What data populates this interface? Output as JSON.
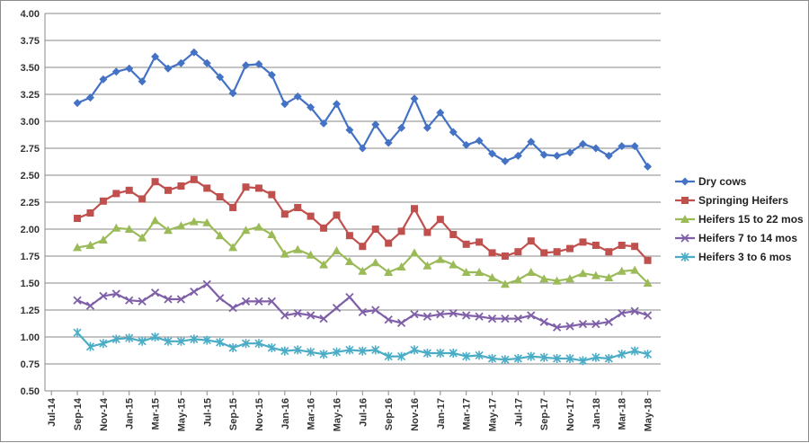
{
  "chart_data": {
    "type": "line",
    "ylim": [
      0.5,
      4.0
    ],
    "yticks": [
      "4.00",
      "3.75",
      "3.50",
      "3.25",
      "3.00",
      "2.75",
      "2.50",
      "2.25",
      "2.00",
      "1.75",
      "1.50",
      "1.25",
      "1.00",
      "0.75",
      "0.50"
    ],
    "xtick_labels": [
      "Jul-14",
      "Sep-14",
      "Nov-14",
      "Jan-15",
      "Mar-15",
      "May-15",
      "Jul-15",
      "Sep-15",
      "Nov-15",
      "Jan-16",
      "Mar-16",
      "May-16",
      "Jul-16",
      "Sep-16",
      "Nov-16",
      "Jan-17",
      "Mar-17",
      "May-17",
      "Jul-17",
      "Sep-17",
      "Nov-17",
      "Jan-18",
      "Mar-18",
      "May-18"
    ],
    "x": [
      "Sep-14",
      "Oct-14",
      "Nov-14",
      "Dec-14",
      "Jan-15",
      "Feb-15",
      "Mar-15",
      "Apr-15",
      "May-15",
      "Jun-15",
      "Jul-15",
      "Aug-15",
      "Sep-15",
      "Oct-15",
      "Nov-15",
      "Dec-15",
      "Jan-16",
      "Feb-16",
      "Mar-16",
      "Apr-16",
      "May-16",
      "Jun-16",
      "Jul-16",
      "Aug-16",
      "Sep-16",
      "Oct-16",
      "Nov-16",
      "Dec-16",
      "Jan-17",
      "Feb-17",
      "Mar-17",
      "Apr-17",
      "May-17",
      "Jun-17",
      "Jul-17",
      "Aug-17",
      "Sep-17",
      "Oct-17",
      "Nov-17",
      "Dec-17",
      "Jan-18",
      "Feb-18",
      "Mar-18",
      "Apr-18",
      "May-18"
    ],
    "grid": "horizontal",
    "legend_position": "right",
    "series": [
      {
        "name": "Dry cows",
        "color": "#4472C4",
        "marker": "diamond",
        "values": [
          3.17,
          3.22,
          3.39,
          3.46,
          3.49,
          3.37,
          3.6,
          3.49,
          3.54,
          3.64,
          3.54,
          3.41,
          3.26,
          3.52,
          3.53,
          3.43,
          3.16,
          3.23,
          3.13,
          2.98,
          3.16,
          2.92,
          2.75,
          2.97,
          2.8,
          2.94,
          3.21,
          2.94,
          3.08,
          2.9,
          2.78,
          2.82,
          2.7,
          2.63,
          2.68,
          2.81,
          2.69,
          2.68,
          2.71,
          2.79,
          2.75,
          2.68,
          2.77,
          2.77,
          2.58
        ]
      },
      {
        "name": "Springing Heifers",
        "color": "#C0504D",
        "marker": "square",
        "values": [
          2.1,
          2.15,
          2.26,
          2.33,
          2.36,
          2.28,
          2.44,
          2.36,
          2.4,
          2.46,
          2.38,
          2.3,
          2.2,
          2.39,
          2.38,
          2.32,
          2.14,
          2.2,
          2.12,
          2.01,
          2.13,
          1.94,
          1.84,
          2.0,
          1.87,
          1.98,
          2.19,
          1.97,
          2.09,
          1.95,
          1.86,
          1.88,
          1.78,
          1.75,
          1.79,
          1.89,
          1.78,
          1.79,
          1.82,
          1.88,
          1.85,
          1.79,
          1.85,
          1.84,
          1.71
        ]
      },
      {
        "name": "Heifers  15 to 22 mos",
        "color": "#9BBB59",
        "marker": "triangle",
        "values": [
          1.83,
          1.85,
          1.9,
          2.01,
          2.0,
          1.92,
          2.08,
          1.99,
          2.03,
          2.07,
          2.06,
          1.94,
          1.83,
          1.99,
          2.02,
          1.95,
          1.77,
          1.81,
          1.76,
          1.67,
          1.8,
          1.7,
          1.61,
          1.69,
          1.6,
          1.65,
          1.78,
          1.66,
          1.72,
          1.67,
          1.6,
          1.6,
          1.55,
          1.49,
          1.53,
          1.6,
          1.54,
          1.52,
          1.54,
          1.59,
          1.57,
          1.55,
          1.61,
          1.62,
          1.5
        ]
      },
      {
        "name": "Heifers  7 to 14 mos",
        "color": "#7F5FA8",
        "marker": "x",
        "values": [
          1.34,
          1.29,
          1.38,
          1.4,
          1.34,
          1.33,
          1.41,
          1.35,
          1.35,
          1.42,
          1.49,
          1.36,
          1.27,
          1.33,
          1.33,
          1.33,
          1.2,
          1.22,
          1.2,
          1.17,
          1.27,
          1.37,
          1.23,
          1.25,
          1.16,
          1.13,
          1.21,
          1.19,
          1.21,
          1.22,
          1.2,
          1.19,
          1.17,
          1.17,
          1.17,
          1.2,
          1.14,
          1.09,
          1.1,
          1.12,
          1.12,
          1.14,
          1.22,
          1.24,
          1.2
        ]
      },
      {
        "name": "Heifers 3 to 6 mos",
        "color": "#4BACC6",
        "marker": "star",
        "values": [
          1.04,
          0.91,
          0.94,
          0.98,
          0.99,
          0.96,
          1.0,
          0.96,
          0.96,
          0.98,
          0.97,
          0.95,
          0.9,
          0.94,
          0.94,
          0.9,
          0.87,
          0.88,
          0.86,
          0.84,
          0.86,
          0.88,
          0.87,
          0.88,
          0.82,
          0.82,
          0.88,
          0.85,
          0.85,
          0.85,
          0.82,
          0.83,
          0.8,
          0.79,
          0.8,
          0.82,
          0.81,
          0.8,
          0.8,
          0.78,
          0.81,
          0.8,
          0.84,
          0.87,
          0.84
        ]
      }
    ]
  }
}
